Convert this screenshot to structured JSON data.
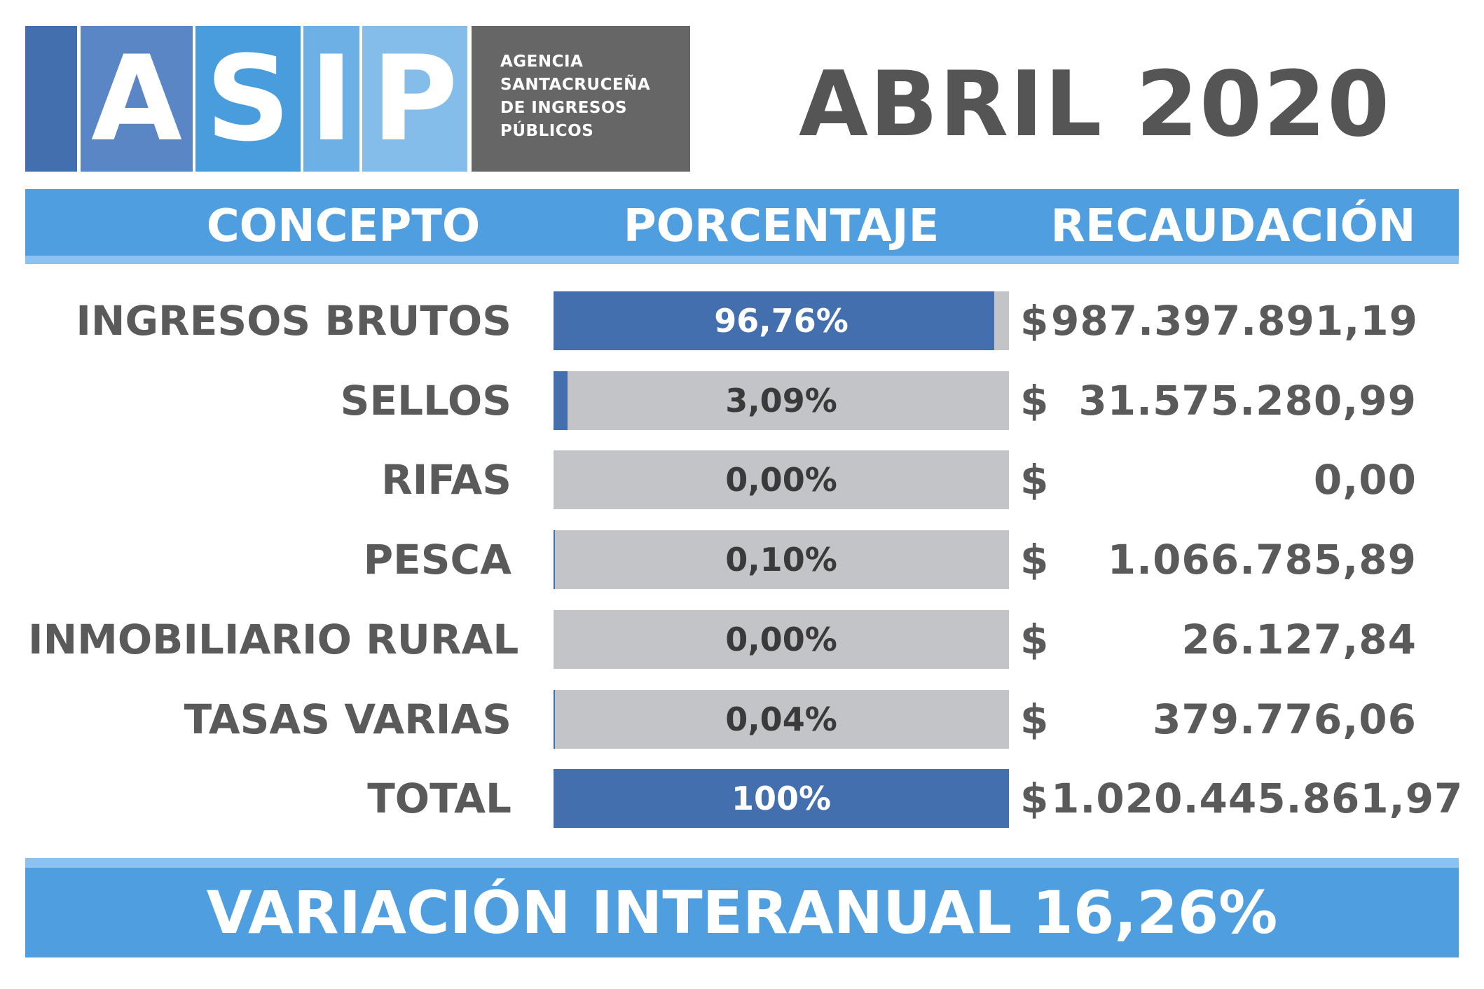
{
  "logo": {
    "letters": [
      "A",
      "S",
      "I",
      "P"
    ],
    "org_lines": [
      "AGENCIA",
      "SANTACRUCEÑA",
      "DE INGRESOS",
      "PÚBLICOS"
    ],
    "colors": [
      "#436faf",
      "#5b86c6",
      "#4a9ddd",
      "#6db0e6",
      "#84bde9"
    ]
  },
  "period": "ABRIL 2020",
  "headers": {
    "concept": "CONCEPTO",
    "percentage": "PORCENTAJE",
    "collection": "RECAUDACIÓN"
  },
  "currency_symbol": "$",
  "rows": [
    {
      "concept": "INGRESOS BRUTOS",
      "percent_label": "96,76%",
      "percent": 96.76,
      "amount": "987.397.891,19"
    },
    {
      "concept": "SELLOS",
      "percent_label": "3,09%",
      "percent": 3.09,
      "amount": "31.575.280,99"
    },
    {
      "concept": "RIFAS",
      "percent_label": "0,00%",
      "percent": 0.0,
      "amount": "0,00"
    },
    {
      "concept": "PESCA",
      "percent_label": "0,10%",
      "percent": 0.1,
      "amount": "1.066.785,89"
    },
    {
      "concept": "INMOBILIARIO RURAL",
      "percent_label": "0,00%",
      "percent": 0.0,
      "amount": "26.127,84"
    },
    {
      "concept": "TASAS VARIAS",
      "percent_label": "0,04%",
      "percent": 0.04,
      "amount": "379.776,06"
    }
  ],
  "total": {
    "concept": "TOTAL",
    "percent_label": "100%",
    "percent": 100,
    "amount": "1.020.445.861,97"
  },
  "footer": "VARIACIÓN INTERANUAL 16,26%",
  "colors": {
    "bar_fill": "#436faf",
    "bar_track": "#c3c4c8",
    "band": "#4f9ee0",
    "band_accent": "#8dc2f0",
    "text_dark": "#5a5a5a",
    "logo_gray": "#666666"
  },
  "chart_data": {
    "type": "bar",
    "orientation": "horizontal",
    "categories": [
      "INGRESOS BRUTOS",
      "SELLOS",
      "RIFAS",
      "PESCA",
      "INMOBILIARIO RURAL",
      "TASAS VARIAS",
      "TOTAL"
    ],
    "series": [
      {
        "values": [
          96.76,
          3.09,
          0.0,
          0.1,
          0.0,
          0.04,
          100
        ]
      }
    ],
    "value_labels": [
      "96,76%",
      "3,09%",
      "0,00%",
      "0,10%",
      "0,00%",
      "0,04%",
      "100%"
    ],
    "xlim": [
      0,
      100
    ],
    "grid": false,
    "legend": "none"
  }
}
